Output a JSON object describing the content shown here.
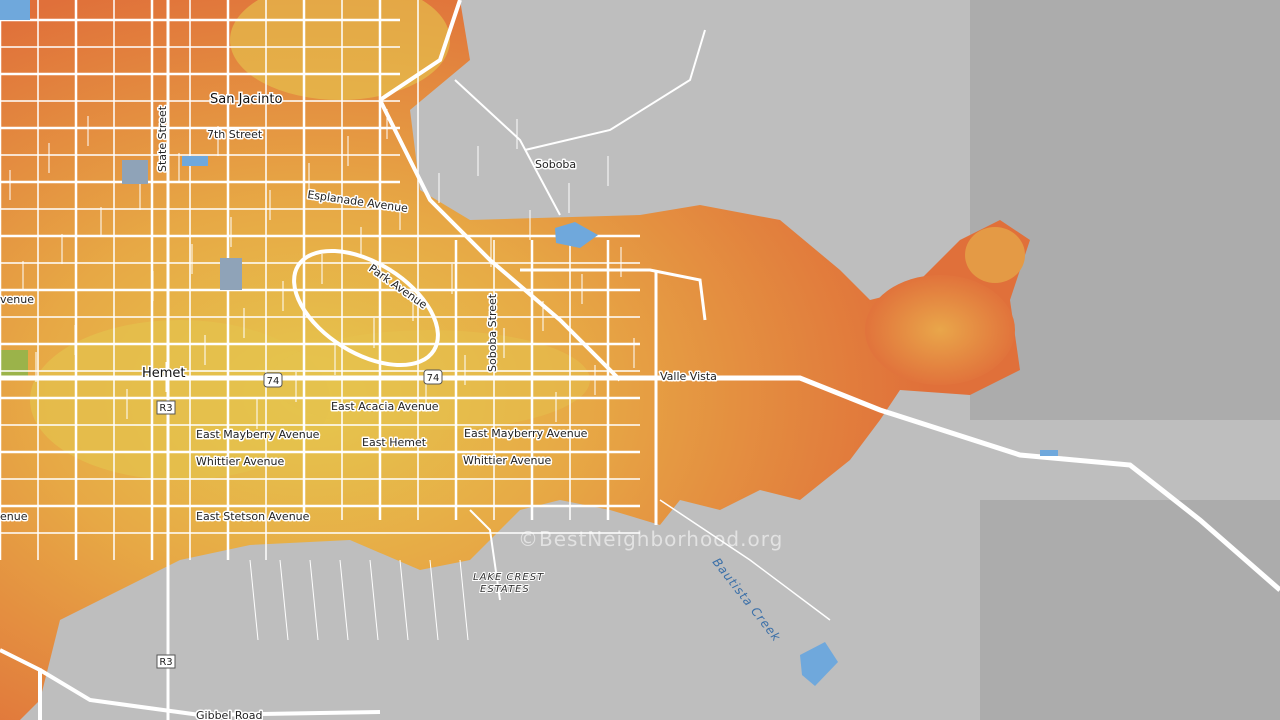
{
  "map": {
    "labels": [
      "San Jacinto",
      "7th Street",
      "State Street",
      "Soboba",
      "Esplanade Avenue",
      "Park Avenue",
      "Soboba Street",
      "Hemet",
      "Valle Vista",
      "East Acacia Avenue",
      "East Mayberry Avenue",
      "East Hemet",
      "East Mayberry Avenue",
      "Whittier Avenue",
      "Whittier Avenue",
      "East Stetson Avenue",
      "LAKE CREST",
      "ESTATES",
      "Bautista Creek",
      "Gibbel Road",
      "venue",
      "enue"
    ],
    "shields": [
      "74",
      "74",
      "R3",
      "R3"
    ],
    "watermark": "©BestNeighborhood.org"
  }
}
